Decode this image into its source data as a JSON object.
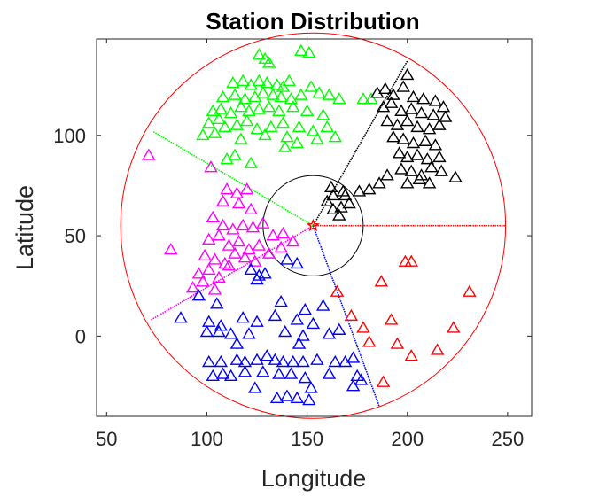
{
  "chart_data": {
    "type": "scatter",
    "title": "Station Distribution",
    "xlabel": "Longitude",
    "ylabel": "Latitude",
    "xlim": [
      45,
      262
    ],
    "ylim": [
      -40,
      148
    ],
    "xticks": [
      50,
      100,
      150,
      200,
      250
    ],
    "yticks": [
      0,
      50,
      100
    ],
    "grid": false,
    "marker": "triangle-open",
    "center": {
      "x": 153,
      "y": 55,
      "marker": "star",
      "color": "#ff0000"
    },
    "inner_circle_radius": 25,
    "outer_circle_radius": 96,
    "circle_colors": {
      "inner": "#000000",
      "outer": "#ff0000"
    },
    "sector_boundaries": [
      {
        "end": [
          200,
          137
        ],
        "color": "#000000"
      },
      {
        "end": [
          249,
          55
        ],
        "color": "#ff0000"
      },
      {
        "end": [
          186,
          -35
        ],
        "color": "#0000ff"
      },
      {
        "end": [
          72,
          8
        ],
        "color": "#ff00ff"
      },
      {
        "end": [
          73,
          102
        ],
        "color": "#00ff00"
      }
    ],
    "series": [
      {
        "color": "#00ff00",
        "values": [
          [
            126,
            140
          ],
          [
            129,
            138
          ],
          [
            131,
            136
          ],
          [
            147,
            142
          ],
          [
            151,
            141
          ],
          [
            113,
            126
          ],
          [
            118,
            127
          ],
          [
            122,
            125
          ],
          [
            126,
            127
          ],
          [
            130,
            126
          ],
          [
            135,
            125
          ],
          [
            138,
            124
          ],
          [
            141,
            127
          ],
          [
            152,
            124
          ],
          [
            108,
            119
          ],
          [
            114,
            120
          ],
          [
            119,
            118
          ],
          [
            124,
            119
          ],
          [
            128,
            121
          ],
          [
            133,
            120
          ],
          [
            137,
            119
          ],
          [
            142,
            118
          ],
          [
            147,
            120
          ],
          [
            156,
            121
          ],
          [
            161,
            120
          ],
          [
            166,
            118
          ],
          [
            178,
            118
          ],
          [
            182,
            118
          ],
          [
            103,
            112
          ],
          [
            107,
            113
          ],
          [
            112,
            111
          ],
          [
            117,
            114
          ],
          [
            121,
            112
          ],
          [
            126,
            113
          ],
          [
            131,
            114
          ],
          [
            136,
            112
          ],
          [
            143,
            114
          ],
          [
            150,
            112
          ],
          [
            158,
            110
          ],
          [
            101,
            106
          ],
          [
            106,
            108
          ],
          [
            109,
            104
          ],
          [
            115,
            105
          ],
          [
            120,
            107
          ],
          [
            125,
            103
          ],
          [
            132,
            104
          ],
          [
            138,
            106
          ],
          [
            146,
            104
          ],
          [
            153,
            102
          ],
          [
            160,
            104
          ],
          [
            98,
            100
          ],
          [
            104,
            101
          ],
          [
            117,
            98
          ],
          [
            129,
            100
          ],
          [
            140,
            99
          ],
          [
            155,
            98
          ],
          [
            164,
            99
          ],
          [
            110,
            88
          ],
          [
            114,
            90
          ],
          [
            122,
            86
          ],
          [
            139,
            94
          ],
          [
            145,
            96
          ]
        ]
      },
      {
        "color": "#000000",
        "values": [
          [
            200,
            130
          ],
          [
            185,
            121
          ],
          [
            189,
            123
          ],
          [
            193,
            120
          ],
          [
            198,
            124
          ],
          [
            203,
            119
          ],
          [
            208,
            118
          ],
          [
            214,
            117
          ],
          [
            218,
            114
          ],
          [
            188,
            114
          ],
          [
            192,
            116
          ],
          [
            197,
            112
          ],
          [
            202,
            113
          ],
          [
            207,
            111
          ],
          [
            213,
            110
          ],
          [
            219,
            109
          ],
          [
            190,
            107
          ],
          [
            195,
            105
          ],
          [
            200,
            107
          ],
          [
            205,
            104
          ],
          [
            211,
            103
          ],
          [
            216,
            105
          ],
          [
            193,
            99
          ],
          [
            198,
            98
          ],
          [
            203,
            96
          ],
          [
            209,
            97
          ],
          [
            214,
            95
          ],
          [
            196,
            91
          ],
          [
            200,
            89
          ],
          [
            205,
            90
          ],
          [
            210,
            88
          ],
          [
            216,
            89
          ],
          [
            197,
            83
          ],
          [
            202,
            82
          ],
          [
            207,
            80
          ],
          [
            212,
            84
          ],
          [
            217,
            82
          ],
          [
            200,
            76
          ],
          [
            206,
            78
          ],
          [
            211,
            76
          ],
          [
            224,
            79
          ],
          [
            190,
            80
          ],
          [
            186,
            76
          ],
          [
            181,
            73
          ],
          [
            176,
            72
          ],
          [
            168,
            72
          ],
          [
            163,
            70
          ],
          [
            160,
            67
          ],
          [
            163,
            63
          ],
          [
            167,
            64
          ],
          [
            169,
            70
          ],
          [
            171,
            66
          ],
          [
            166,
            60
          ],
          [
            162,
            74
          ]
        ]
      },
      {
        "color": "#ff00ff",
        "values": [
          [
            71,
            90
          ],
          [
            102,
            84
          ],
          [
            110,
            73
          ],
          [
            115,
            71
          ],
          [
            108,
            67
          ],
          [
            116,
            66
          ],
          [
            120,
            73
          ],
          [
            122,
            63
          ],
          [
            103,
            59
          ],
          [
            108,
            55
          ],
          [
            113,
            53
          ],
          [
            118,
            55
          ],
          [
            123,
            54
          ],
          [
            128,
            56
          ],
          [
            133,
            50
          ],
          [
            138,
            51
          ],
          [
            101,
            48
          ],
          [
            106,
            50
          ],
          [
            111,
            45
          ],
          [
            116,
            47
          ],
          [
            121,
            43
          ],
          [
            126,
            45
          ],
          [
            131,
            41
          ],
          [
            137,
            44
          ],
          [
            143,
            47
          ],
          [
            99,
            40
          ],
          [
            104,
            38
          ],
          [
            109,
            36
          ],
          [
            114,
            41
          ],
          [
            119,
            39
          ],
          [
            124,
            37
          ],
          [
            96,
            31
          ],
          [
            101,
            33
          ],
          [
            106,
            29
          ],
          [
            93,
            24
          ],
          [
            98,
            27
          ],
          [
            104,
            23
          ],
          [
            82,
            43
          ],
          [
            111,
            35
          ]
        ]
      },
      {
        "color": "#0000ff",
        "values": [
          [
            122,
            33
          ],
          [
            126,
            30
          ],
          [
            129,
            31
          ],
          [
            140,
            38
          ],
          [
            145,
            36
          ],
          [
            96,
            20
          ],
          [
            105,
            16
          ],
          [
            125,
            28
          ],
          [
            137,
            17
          ],
          [
            149,
            13
          ],
          [
            158,
            15
          ],
          [
            87,
            9
          ],
          [
            101,
            7
          ],
          [
            107,
            5
          ],
          [
            118,
            9
          ],
          [
            125,
            7
          ],
          [
            134,
            10
          ],
          [
            145,
            8
          ],
          [
            153,
            6
          ],
          [
            166,
            3
          ],
          [
            100,
            2
          ],
          [
            106,
            2
          ],
          [
            112,
            1
          ],
          [
            121,
            1
          ],
          [
            139,
            2
          ],
          [
            148,
            0
          ],
          [
            161,
            1
          ],
          [
            115,
            -4
          ],
          [
            146,
            -4
          ],
          [
            101,
            -13
          ],
          [
            107,
            -13
          ],
          [
            115,
            -12
          ],
          [
            119,
            -13
          ],
          [
            125,
            -12
          ],
          [
            130,
            -10
          ],
          [
            134,
            -12
          ],
          [
            138,
            -13
          ],
          [
            143,
            -13
          ],
          [
            148,
            -13
          ],
          [
            155,
            -12
          ],
          [
            164,
            -13
          ],
          [
            169,
            -13
          ],
          [
            173,
            -11
          ],
          [
            103,
            -20
          ],
          [
            108,
            -19
          ],
          [
            112,
            -20
          ],
          [
            119,
            -18
          ],
          [
            128,
            -18
          ],
          [
            136,
            -19
          ],
          [
            142,
            -19
          ],
          [
            149,
            -21
          ],
          [
            161,
            -19
          ],
          [
            175,
            -20
          ],
          [
            177,
            -22
          ],
          [
            124,
            -26
          ],
          [
            152,
            -26
          ],
          [
            173,
            -25
          ],
          [
            135,
            -31
          ],
          [
            140,
            -30
          ],
          [
            145,
            -31
          ],
          [
            151,
            -32
          ]
        ]
      },
      {
        "color": "#ff0000",
        "values": [
          [
            165,
            22
          ],
          [
            199,
            37
          ],
          [
            202,
            37
          ],
          [
            187,
            27
          ],
          [
            231,
            22
          ],
          [
            172,
            10
          ],
          [
            178,
            4
          ],
          [
            192,
            8
          ],
          [
            223,
            4
          ],
          [
            181,
            -3
          ],
          [
            195,
            -4
          ],
          [
            215,
            -7
          ],
          [
            202,
            -10
          ],
          [
            188,
            -23
          ]
        ]
      }
    ]
  }
}
